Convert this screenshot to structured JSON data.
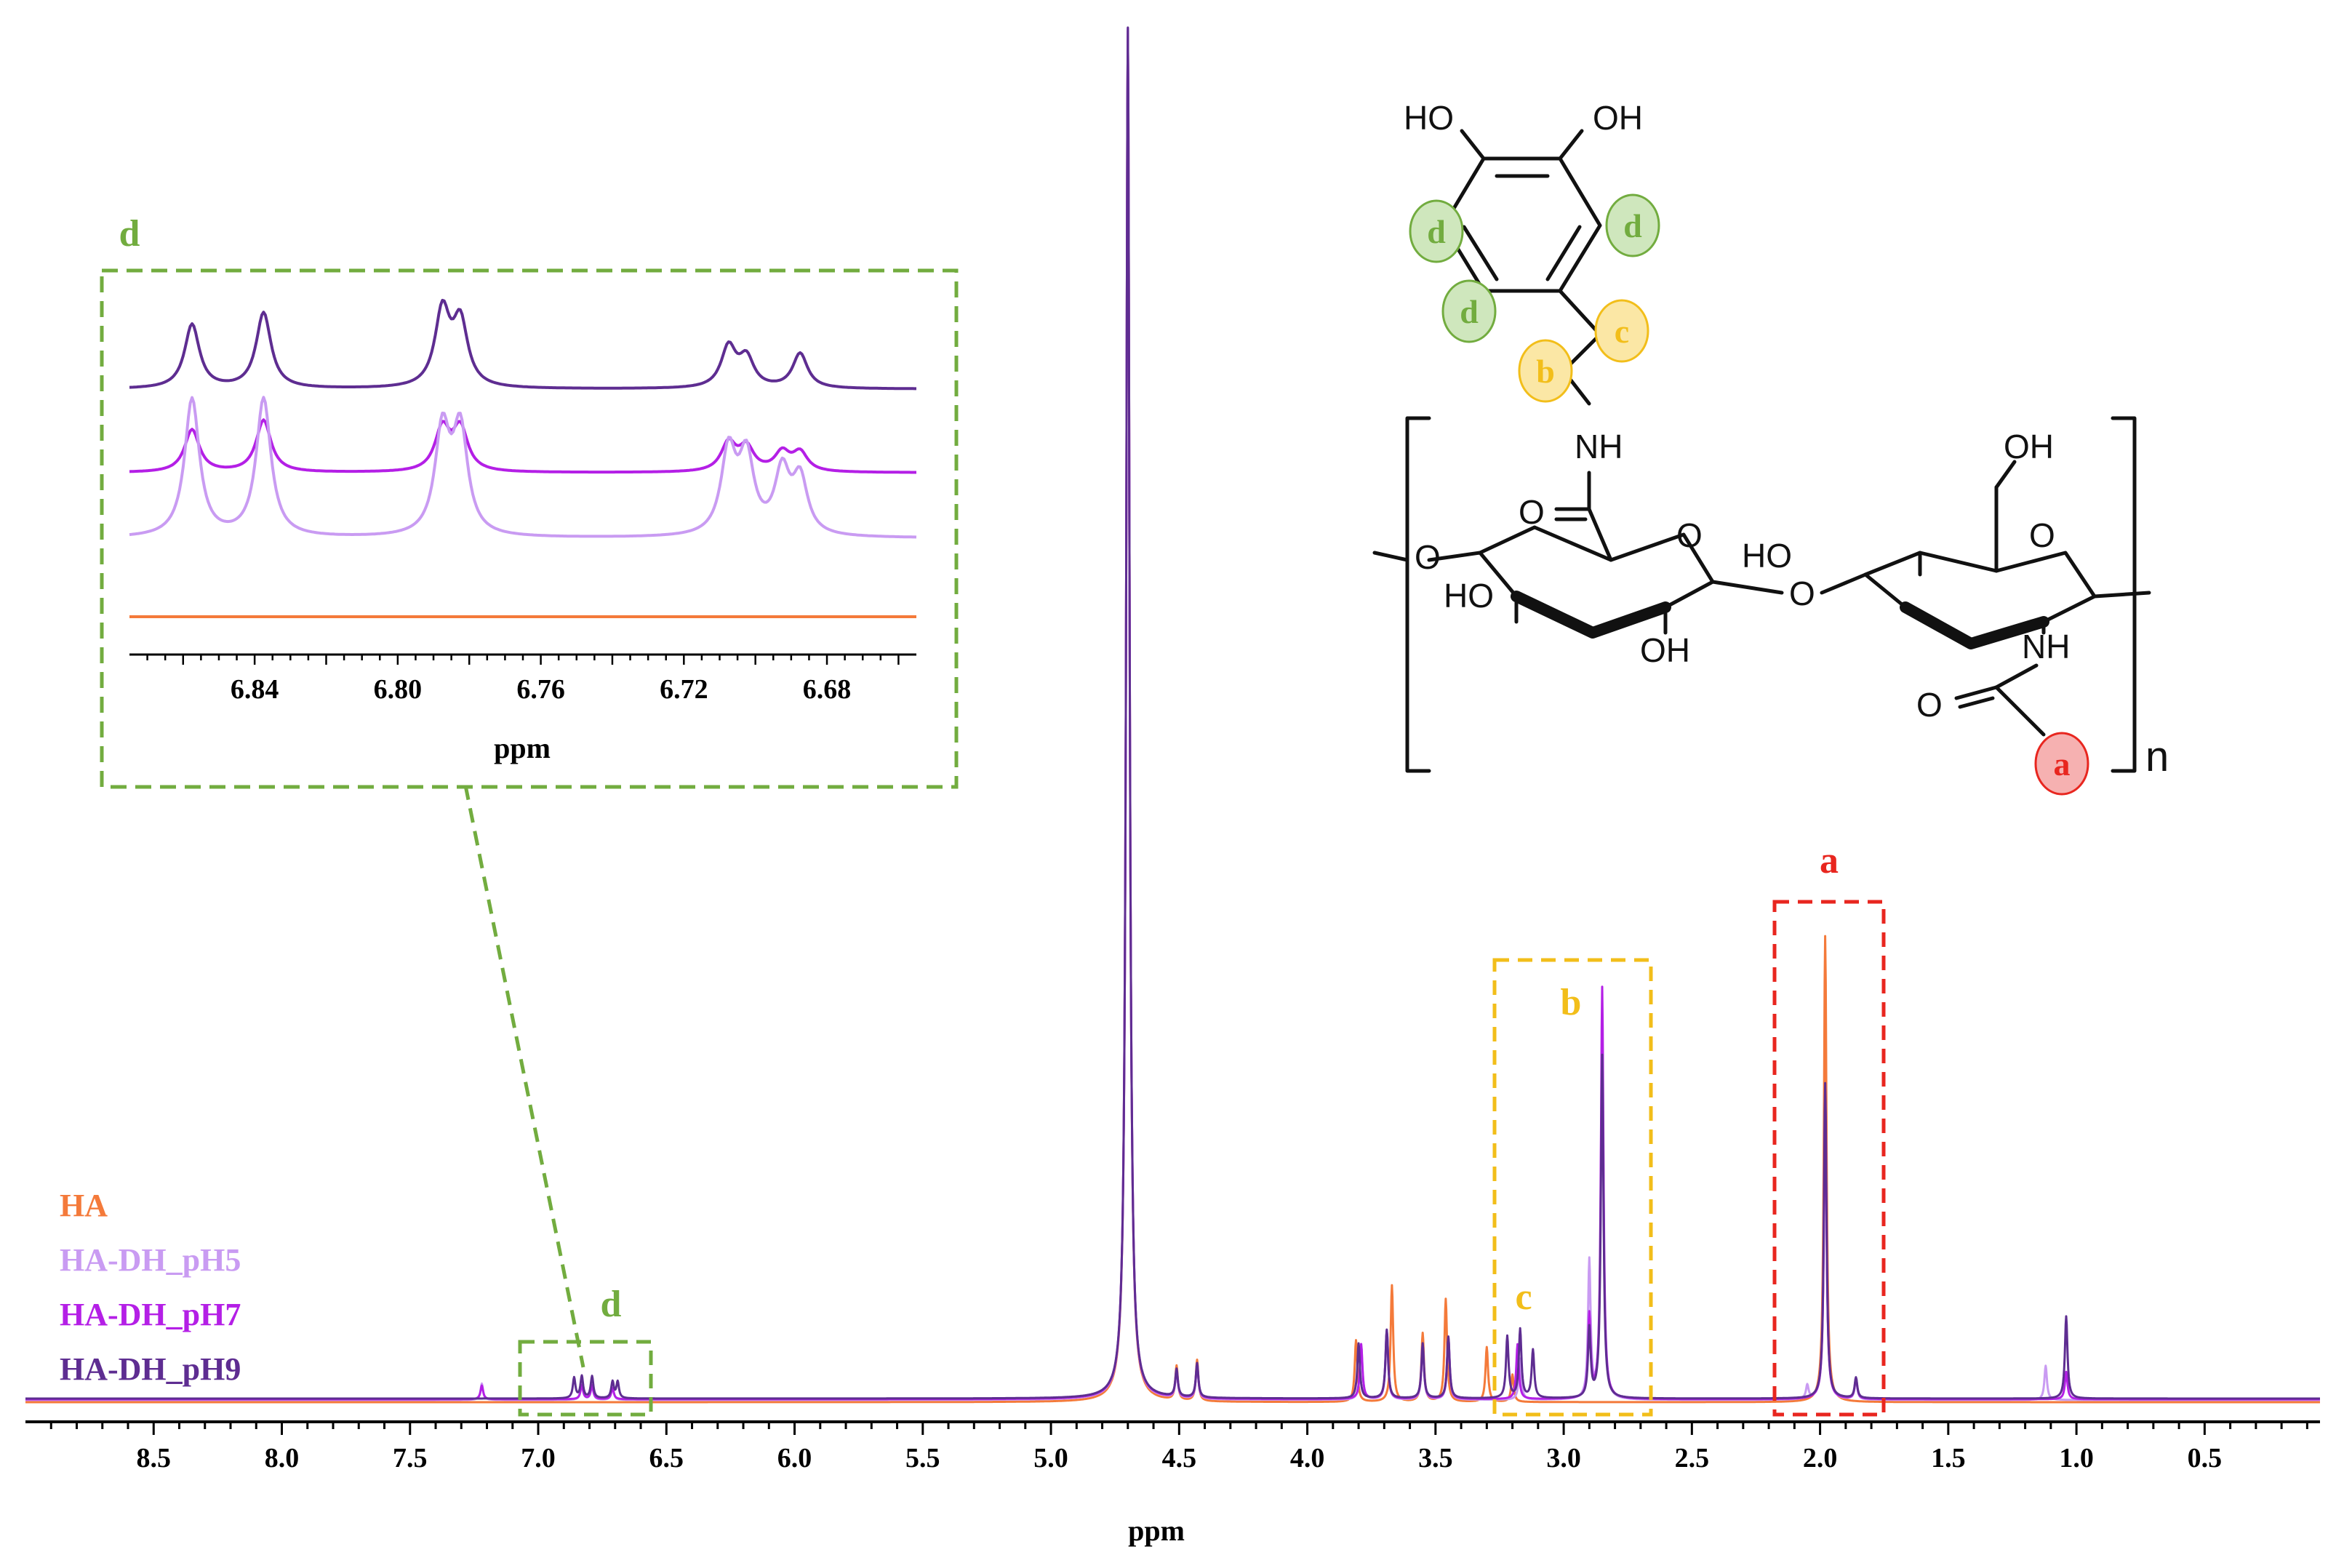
{
  "chart_data": {
    "type": "line",
    "title": "",
    "xlabel": "ppm",
    "ylabel": "",
    "x_reversed": true,
    "xlim": [
      9.0,
      0.05
    ],
    "x_ticks": [
      "8.5",
      "8.0",
      "7.5",
      "7.0",
      "6.5",
      "6.0",
      "5.5",
      "5.0",
      "4.5",
      "4.0",
      "3.5",
      "3.0",
      "2.5",
      "2.0",
      "1.5",
      "1.0",
      "0.5"
    ],
    "grid": false,
    "legend_position": "left",
    "colors": {
      "HA": "#f47a3a",
      "HA-DH_pH5": "#c99bf2",
      "HA-DH_pH7": "#b41fe6",
      "HA-DH_pH9": "#5e2d91",
      "label_a": "#e8261f",
      "label_bc": "#f2be1a",
      "label_d": "#72ac3f"
    },
    "series": [
      {
        "name": "HA",
        "peaks": [
          [
            4.7,
            1.0
          ],
          [
            4.51,
            0.025
          ],
          [
            4.43,
            0.03
          ],
          [
            3.81,
            0.045
          ],
          [
            3.67,
            0.085
          ],
          [
            3.55,
            0.05
          ],
          [
            3.46,
            0.075
          ],
          [
            3.3,
            0.04
          ],
          [
            3.2,
            0.02
          ],
          [
            1.98,
            0.34
          ]
        ]
      },
      {
        "name": "HA-DH_pH5",
        "peaks": [
          [
            4.7,
            1.0
          ],
          [
            7.22,
            0.012
          ],
          [
            6.83,
            0.012
          ],
          [
            6.79,
            0.01
          ],
          [
            6.71,
            0.009
          ],
          [
            4.51,
            0.02
          ],
          [
            4.43,
            0.025
          ],
          [
            3.79,
            0.04
          ],
          [
            3.69,
            0.05
          ],
          [
            3.55,
            0.04
          ],
          [
            3.45,
            0.045
          ],
          [
            3.17,
            0.03
          ],
          [
            2.9,
            0.1
          ],
          [
            2.85,
            0.28
          ],
          [
            2.05,
            0.01
          ],
          [
            1.98,
            0.23
          ],
          [
            1.86,
            0.015
          ],
          [
            1.12,
            0.025
          ]
        ]
      },
      {
        "name": "HA-DH_pH7",
        "peaks": [
          [
            4.7,
            1.0
          ],
          [
            7.22,
            0.01
          ],
          [
            6.83,
            0.01
          ],
          [
            6.79,
            0.01
          ],
          [
            6.71,
            0.008
          ],
          [
            4.51,
            0.02
          ],
          [
            4.43,
            0.025
          ],
          [
            3.79,
            0.04
          ],
          [
            3.69,
            0.05
          ],
          [
            3.55,
            0.04
          ],
          [
            3.45,
            0.045
          ],
          [
            3.18,
            0.04
          ],
          [
            2.9,
            0.06
          ],
          [
            2.85,
            0.3
          ],
          [
            1.98,
            0.22
          ],
          [
            1.86,
            0.015
          ],
          [
            1.04,
            0.02
          ]
        ]
      },
      {
        "name": "HA-DH_pH9",
        "peaks": [
          [
            4.7,
            1.0
          ],
          [
            6.86,
            0.015
          ],
          [
            6.83,
            0.016
          ],
          [
            6.79,
            0.016
          ],
          [
            6.71,
            0.012
          ],
          [
            6.69,
            0.012
          ],
          [
            4.51,
            0.02
          ],
          [
            4.43,
            0.025
          ],
          [
            3.8,
            0.04
          ],
          [
            3.69,
            0.05
          ],
          [
            3.55,
            0.04
          ],
          [
            3.45,
            0.045
          ],
          [
            3.22,
            0.045
          ],
          [
            3.17,
            0.05
          ],
          [
            3.12,
            0.035
          ],
          [
            2.9,
            0.05
          ],
          [
            2.85,
            0.25
          ],
          [
            1.98,
            0.23
          ],
          [
            1.86,
            0.015
          ],
          [
            1.04,
            0.06
          ]
        ]
      }
    ],
    "annotations": [
      {
        "label": "a",
        "range": [
          2.16,
          1.77
        ]
      },
      {
        "label": "b",
        "range": [
          3.26,
          2.68
        ]
      },
      {
        "label": "c",
        "at": 3.2
      },
      {
        "label": "d",
        "range": [
          7.02,
          6.55
        ]
      }
    ],
    "inset": {
      "label": "d",
      "xlabel": "ppm",
      "xlim": [
        6.875,
        6.655
      ],
      "x_ticks": [
        "6.84",
        "6.80",
        "6.76",
        "6.72",
        "6.68"
      ],
      "series": [
        {
          "name": "HA-DH_pH9",
          "peaks": [
            [
              6.8575,
              0.55
            ],
            [
              6.8375,
              0.65
            ],
            [
              6.7875,
              0.65
            ],
            [
              6.7825,
              0.55
            ],
            [
              6.7075,
              0.35
            ],
            [
              6.7025,
              0.25
            ],
            [
              6.6875,
              0.3
            ]
          ]
        },
        {
          "name": "HA-DH_pH7",
          "peaks": [
            [
              6.8575,
              0.45
            ],
            [
              6.8375,
              0.55
            ],
            [
              6.7875,
              0.45
            ],
            [
              6.7825,
              0.45
            ],
            [
              6.7075,
              0.3
            ],
            [
              6.7025,
              0.25
            ],
            [
              6.6925,
              0.2
            ],
            [
              6.6875,
              0.2
            ]
          ]
        },
        {
          "name": "HA-DH_pH5",
          "peaks": [
            [
              6.8575,
              1.0
            ],
            [
              6.8375,
              1.0
            ],
            [
              6.7875,
              0.75
            ],
            [
              6.7825,
              0.75
            ],
            [
              6.7075,
              0.6
            ],
            [
              6.7025,
              0.55
            ],
            [
              6.6925,
              0.45
            ],
            [
              6.6875,
              0.4
            ]
          ]
        },
        {
          "name": "HA",
          "peaks": []
        }
      ]
    }
  },
  "structure": {
    "oh_top_left": "HO",
    "oh_top_right": "OH",
    "nh_amide": "NH",
    "o_carbonyl": "O",
    "o_ring1": "O",
    "o_ring2": "O",
    "o_link": "O",
    "o_left": "O",
    "ho_ring1": "HO",
    "oh_ring1": "OH",
    "ho_ring2": "HO",
    "oh_ch2": "OH",
    "nh_acetyl": "NH",
    "o_acetyl": "O",
    "repeat_n": "n",
    "site_a": "a",
    "site_b": "b",
    "site_c": "c",
    "site_d": "d"
  }
}
